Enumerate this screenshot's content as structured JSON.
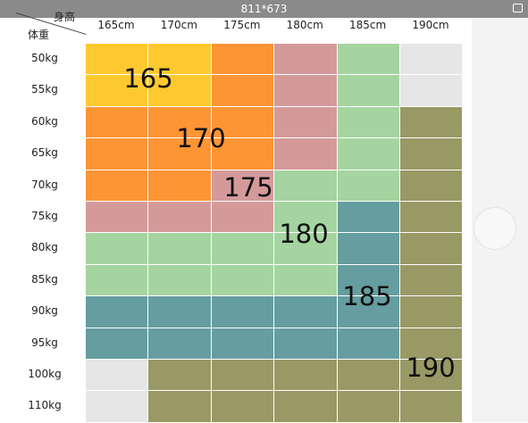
{
  "viewer": {
    "title": "811*673"
  },
  "table": {
    "corner": {
      "top": "身高",
      "bottom": "体重"
    },
    "columns": [
      "165cm",
      "170cm",
      "175cm",
      "180cm",
      "185cm",
      "190cm"
    ],
    "rows": [
      {
        "label": "50kg",
        "colors": [
          "#fdc92f",
          "#fdc92f",
          "#fd9535",
          "#d49a9a",
          "#a5d4a0",
          "#e6e6e6"
        ]
      },
      {
        "label": "55kg",
        "colors": [
          "#fdc92f",
          "#fdc92f",
          "#fd9535",
          "#d49a9a",
          "#a5d4a0",
          "#e6e6e6"
        ]
      },
      {
        "label": "60kg",
        "colors": [
          "#fd9535",
          "#fd9535",
          "#fd9535",
          "#d49a9a",
          "#a5d4a0",
          "#999966"
        ]
      },
      {
        "label": "65kg",
        "colors": [
          "#fd9535",
          "#fd9535",
          "#fd9535",
          "#d49a9a",
          "#a5d4a0",
          "#999966"
        ]
      },
      {
        "label": "70kg",
        "colors": [
          "#fd9535",
          "#fd9535",
          "#d49a9a",
          "#a5d4a0",
          "#a5d4a0",
          "#999966"
        ]
      },
      {
        "label": "75kg",
        "colors": [
          "#d49a9a",
          "#d49a9a",
          "#d49a9a",
          "#a5d4a0",
          "#659da0",
          "#999966"
        ]
      },
      {
        "label": "80kg",
        "colors": [
          "#a5d4a0",
          "#a5d4a0",
          "#a5d4a0",
          "#a5d4a0",
          "#659da0",
          "#999966"
        ]
      },
      {
        "label": "85kg",
        "colors": [
          "#a5d4a0",
          "#a5d4a0",
          "#a5d4a0",
          "#a5d4a0",
          "#659da0",
          "#999966"
        ]
      },
      {
        "label": "90kg",
        "colors": [
          "#659da0",
          "#659da0",
          "#659da0",
          "#659da0",
          "#659da0",
          "#999966"
        ]
      },
      {
        "label": "95kg",
        "colors": [
          "#659da0",
          "#659da0",
          "#659da0",
          "#659da0",
          "#659da0",
          "#999966"
        ]
      },
      {
        "label": "100kg",
        "colors": [
          "#e6e6e6",
          "#999966",
          "#999966",
          "#999966",
          "#999966",
          "#999966"
        ]
      },
      {
        "label": "110kg",
        "colors": [
          "#e6e6e6",
          "#999966",
          "#999966",
          "#999966",
          "#999966",
          "#999966"
        ]
      }
    ],
    "zones": [
      "165",
      "170",
      "175",
      "180",
      "185",
      "190"
    ]
  }
}
